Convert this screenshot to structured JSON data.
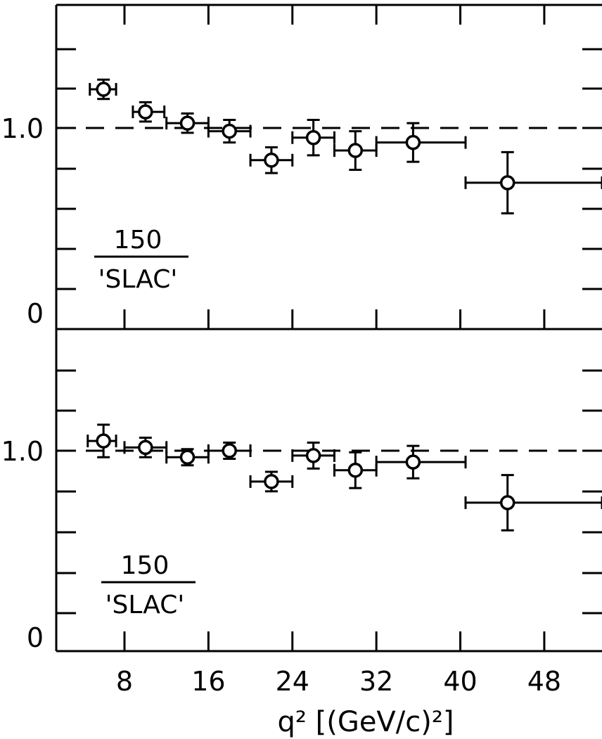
{
  "chart_data": [
    {
      "type": "scatter",
      "panel": "top",
      "ratio_label": {
        "numerator": "150",
        "denominator": "'SLAC'"
      },
      "ylim": [
        -0.1,
        1.45
      ],
      "xlim": [
        1.5,
        53.5
      ],
      "y_tick_labels": [
        "1.0",
        "0"
      ],
      "x_tick_labels": [],
      "reference_line": 1.0,
      "series": [
        {
          "points": [
            {
              "x": 6.0,
              "y": 1.24,
              "xerr": [
                4.7,
                7.2
              ],
              "yerr": 0.06
            },
            {
              "x": 10.0,
              "y": 1.1,
              "xerr": [
                8.8,
                11.8
              ],
              "yerr": 0.06
            },
            {
              "x": 14.0,
              "y": 1.03,
              "xerr": [
                12.0,
                16.0
              ],
              "yerr": 0.06
            },
            {
              "x": 18.0,
              "y": 0.98,
              "xerr": [
                16.0,
                20.0
              ],
              "yerr": 0.07
            },
            {
              "x": 22.0,
              "y": 0.8,
              "xerr": [
                20.0,
                24.0
              ],
              "yerr": 0.08
            },
            {
              "x": 26.0,
              "y": 0.94,
              "xerr": [
                24.0,
                28.0
              ],
              "yerr": 0.11
            },
            {
              "x": 30.0,
              "y": 0.86,
              "xerr": [
                28.0,
                32.0
              ],
              "yerr": 0.12
            },
            {
              "x": 35.5,
              "y": 0.91,
              "xerr": [
                32.0,
                40.5
              ],
              "yerr": 0.12
            },
            {
              "x": 44.5,
              "y": 0.66,
              "xerr": [
                40.5,
                53.5
              ],
              "yerr": 0.19
            }
          ]
        }
      ]
    },
    {
      "type": "scatter",
      "panel": "bottom",
      "ratio_label": {
        "numerator": "150",
        "denominator": "'SLAC'"
      },
      "ylim": [
        -0.1,
        1.45
      ],
      "xlim": [
        1.5,
        53.5
      ],
      "y_tick_labels": [
        "1.0",
        "0"
      ],
      "x_tick_labels": [
        "8",
        "16",
        "24",
        "32",
        "40",
        "48"
      ],
      "xlabel": "q² [(GeV/c)²]",
      "reference_line": 1.0,
      "series": [
        {
          "points": [
            {
              "x": 6.0,
              "y": 1.06,
              "xerr": [
                4.5,
                7.2
              ],
              "yerr": 0.1
            },
            {
              "x": 10.0,
              "y": 1.02,
              "xerr": [
                8.0,
                12.0
              ],
              "yerr": 0.06
            },
            {
              "x": 14.0,
              "y": 0.96,
              "xerr": [
                12.0,
                16.0
              ],
              "yerr": 0.05
            },
            {
              "x": 18.0,
              "y": 1.0,
              "xerr": [
                16.0,
                20.0
              ],
              "yerr": 0.05
            },
            {
              "x": 22.0,
              "y": 0.81,
              "xerr": [
                20.0,
                24.0
              ],
              "yerr": 0.06
            },
            {
              "x": 26.0,
              "y": 0.97,
              "xerr": [
                24.0,
                28.0
              ],
              "yerr": 0.08
            },
            {
              "x": 30.0,
              "y": 0.88,
              "xerr": [
                28.0,
                32.0
              ],
              "yerr": 0.11
            },
            {
              "x": 35.5,
              "y": 0.93,
              "xerr": [
                32.0,
                40.5
              ],
              "yerr": 0.1
            },
            {
              "x": 44.5,
              "y": 0.68,
              "xerr": [
                40.5,
                53.5
              ],
              "yerr": 0.17
            }
          ]
        }
      ]
    }
  ]
}
